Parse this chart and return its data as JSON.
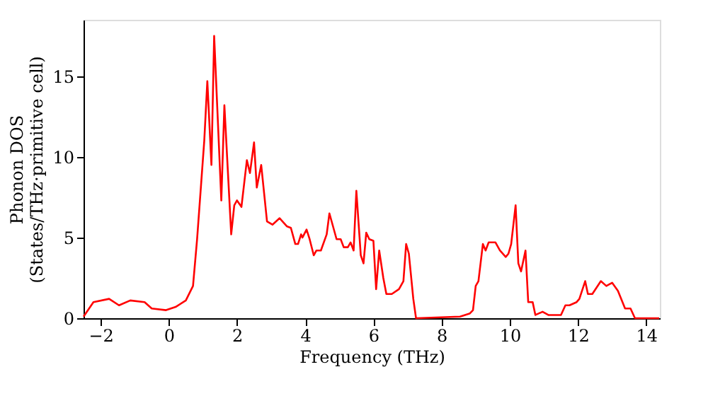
{
  "chart_data": {
    "type": "line",
    "xlabel": "Frequency (THz)",
    "ylabel": "Phonon DOS\n(States/THz·primitive cell)",
    "xlim": [
      -2.5,
      14.4
    ],
    "ylim": [
      0,
      18.5
    ],
    "xticks": [
      -2,
      0,
      2,
      4,
      6,
      8,
      10,
      12,
      14
    ],
    "yticks": [
      0,
      5,
      10,
      15
    ],
    "grid": false,
    "marker": "none",
    "line_style": "solid",
    "series": [
      {
        "color": "#ff0000",
        "x": [
          -2.5,
          -2.21,
          -1.75,
          -1.46,
          -1.13,
          -0.71,
          -0.5,
          -0.08,
          0.2,
          0.5,
          0.71,
          0.83,
          1.04,
          1.13,
          1.25,
          1.33,
          1.54,
          1.63,
          1.83,
          1.92,
          2.0,
          2.13,
          2.29,
          2.38,
          2.5,
          2.58,
          2.71,
          2.88,
          3.04,
          3.25,
          3.46,
          3.58,
          3.71,
          3.79,
          3.88,
          3.92,
          4.04,
          4.13,
          4.25,
          4.33,
          4.46,
          4.63,
          4.71,
          4.92,
          5.04,
          5.13,
          5.25,
          5.33,
          5.42,
          5.5,
          5.63,
          5.71,
          5.79,
          5.88,
          6.0,
          6.08,
          6.17,
          6.29,
          6.38,
          6.54,
          6.75,
          6.88,
          6.96,
          7.04,
          7.17,
          7.25,
          8.54,
          8.83,
          8.92,
          9.0,
          9.08,
          9.21,
          9.29,
          9.38,
          9.58,
          9.71,
          9.88,
          9.96,
          10.04,
          10.17,
          10.25,
          10.33,
          10.46,
          10.54,
          10.67,
          10.75,
          10.96,
          11.13,
          11.5,
          11.63,
          11.75,
          11.96,
          12.04,
          12.21,
          12.29,
          12.42,
          12.67,
          12.83,
          13.0,
          13.17,
          13.38,
          13.54,
          13.67,
          14.38
        ],
        "values": [
          0.1,
          1.0,
          1.2,
          0.8,
          1.1,
          1.0,
          0.6,
          0.5,
          0.7,
          1.1,
          2.0,
          4.9,
          11,
          14.7,
          9.5,
          17.5,
          7.3,
          13.2,
          5.2,
          7.0,
          7.3,
          6.9,
          9.8,
          9.0,
          10.9,
          8.1,
          9.5,
          6.0,
          5.8,
          6.2,
          5.7,
          5.6,
          4.6,
          4.6,
          5.2,
          5.0,
          5.5,
          4.9,
          3.9,
          4.2,
          4.2,
          5.2,
          6.5,
          4.9,
          4.9,
          4.4,
          4.4,
          4.7,
          4.2,
          7.9,
          3.9,
          3.4,
          5.3,
          4.9,
          4.8,
          1.8,
          4.2,
          2.5,
          1.5,
          1.5,
          1.8,
          2.3,
          4.6,
          4.0,
          1.2,
          0,
          0.1,
          0.3,
          0.5,
          2.0,
          2.3,
          4.6,
          4.2,
          4.7,
          4.7,
          4.2,
          3.8,
          4.0,
          4.6,
          7.0,
          3.4,
          2.9,
          4.2,
          1.0,
          1.0,
          0.2,
          0.4,
          0.2,
          0.2,
          0.8,
          0.8,
          1.0,
          1.2,
          2.3,
          1.5,
          1.5,
          2.3,
          2.0,
          2.2,
          1.7,
          0.6,
          0.6,
          0,
          0
        ]
      }
    ]
  }
}
